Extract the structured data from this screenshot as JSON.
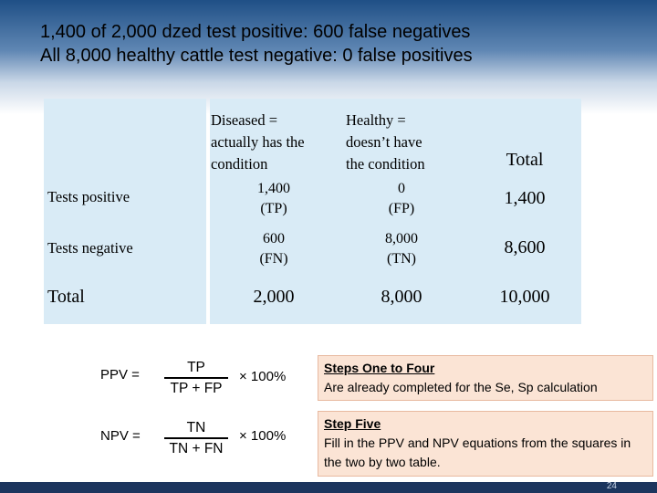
{
  "title": {
    "line1": "1,400 of 2,000 dzed test positive: 600 false negatives",
    "line2": "All 8,000 healthy cattle test negative: 0 false positives"
  },
  "table": {
    "col_headers": {
      "diseased": [
        "Diseased =",
        "actually has the",
        "condition"
      ],
      "healthy": [
        "Healthy =",
        "doesn’t have",
        "the condition"
      ],
      "total": "Total"
    },
    "rows": [
      {
        "label": "Tests positive",
        "diseased": [
          "1,400",
          "(TP)"
        ],
        "healthy": [
          "0",
          "(FP)"
        ],
        "total": "1,400"
      },
      {
        "label": "Tests negative",
        "diseased": [
          "600",
          "(FN)"
        ],
        "healthy": [
          "8,000",
          "(TN)"
        ],
        "total": "8,600"
      }
    ],
    "total_row": {
      "label": "Total",
      "diseased": "2,000",
      "healthy": "8,000",
      "total": "10,000"
    }
  },
  "equations": {
    "ppv": {
      "label": "PPV  =",
      "numerator": "TP",
      "denominator": "TP + FP",
      "multiplier": "× 100%"
    },
    "npv": {
      "label": "NPV  =",
      "numerator": "TN",
      "denominator": "TN + FN",
      "multiplier": "× 100%"
    }
  },
  "notes": [
    {
      "heading": "Steps One to Four",
      "body": "Are already completed for the Se, Sp calculation"
    },
    {
      "heading": "Step Five",
      "body": "Fill in the PPV and NPV equations from the squares in the two by two table."
    }
  ],
  "page_number": "24"
}
